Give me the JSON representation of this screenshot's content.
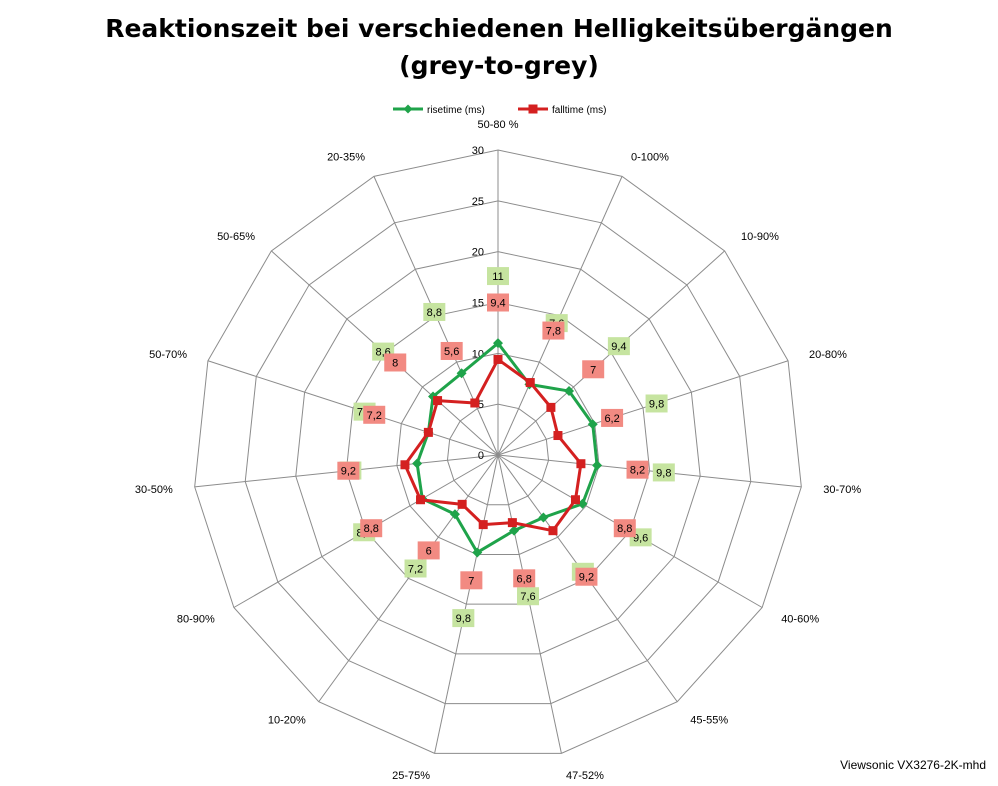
{
  "chart_data": {
    "type": "radar",
    "title_line1": "Reaktionszeit bei verschiedenen Helligkeitsübergängen",
    "title_line2": "(grey-to-grey)",
    "categories": [
      "50-80 %",
      "0-100%",
      "10-90%",
      "20-80%",
      "30-70%",
      "40-60%",
      "45-55%",
      "47-52%",
      "25-75%",
      "10-20%",
      "80-90%",
      "30-50%",
      "50-70%",
      "50-65%",
      "20-35%"
    ],
    "rlim": [
      0,
      30
    ],
    "ticks": [
      "0",
      "5",
      "10",
      "15",
      "20",
      "25",
      "30"
    ],
    "tick_values": [
      0,
      5,
      10,
      15,
      20,
      25,
      30
    ],
    "grid": true,
    "legend_position": "top",
    "series": [
      {
        "name": "risetime (ms)",
        "color": "#1fa34a",
        "label_bg": "#c6e4a0",
        "marker": "diamond",
        "values": [
          11,
          7.6,
          9.4,
          9.8,
          9.8,
          9.6,
          7.6,
          7.6,
          9.8,
          7.2,
          8.6,
          8,
          7.2,
          8.6,
          8.8
        ],
        "labels": [
          "11",
          "7,6",
          "9,4",
          "9,8",
          "9,8",
          "9,6",
          "7,6",
          "7,6",
          "9,8",
          "7,2",
          "8,6",
          "8",
          "7,2",
          "8,6",
          "8,8"
        ]
      },
      {
        "name": "falltime (ms)",
        "color": "#d42020",
        "label_bg": "#f28a82",
        "marker": "square",
        "values": [
          9.4,
          7.8,
          7,
          6.2,
          8.2,
          8.8,
          9.2,
          6.8,
          7,
          6,
          8.8,
          9.2,
          7.2,
          8,
          5.6
        ],
        "labels": [
          "9,4",
          "7,8",
          "7",
          "6,2",
          "8,2",
          "8,8",
          "9,2",
          "6,8",
          "7",
          "6",
          "8,8",
          "9,2",
          "7,2",
          "8",
          "5,6"
        ]
      }
    ],
    "watermark": "Viewsonic VX3276-2K-mhd"
  }
}
